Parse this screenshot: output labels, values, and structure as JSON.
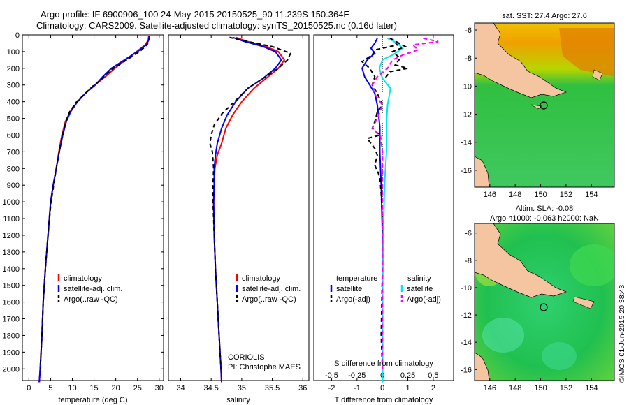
{
  "title_line1": "Argo profile: IF 6900906_100 24-May-2015 20150525_90 11.239S 150.364E",
  "title_line2": "Climatology: CARS2009. Satellite-adjusted climatology: synTS_20150525.nc (0.16d later)",
  "colors": {
    "climatology": "#ff0000",
    "satellite": "#0000ff",
    "argo": "#000000",
    "sal_satellite": "#00e5ee",
    "sal_argo": "#ff00ff"
  },
  "chart_data": [
    {
      "type": "line",
      "id": "temperature",
      "xlabel": "temperature (deg C)",
      "xlim": [
        -1.5,
        31
      ],
      "ylim": [
        2070,
        0
      ],
      "xticks": [
        0,
        5,
        10,
        15,
        20,
        25,
        30
      ],
      "yticks": [
        0,
        100,
        200,
        300,
        400,
        500,
        600,
        700,
        800,
        900,
        1000,
        1100,
        1200,
        1300,
        1400,
        1500,
        1600,
        1700,
        1800,
        1900,
        2000
      ],
      "legend": [
        "climatology",
        "satellite-adj. clim.",
        "Argo(..raw -QC)"
      ],
      "series": [
        {
          "name": "climatology",
          "color": "red",
          "dash": "",
          "points": [
            [
              27.6,
              5
            ],
            [
              27.5,
              30
            ],
            [
              26.8,
              60
            ],
            [
              24.8,
              100
            ],
            [
              22.2,
              150
            ],
            [
              19.8,
              200
            ],
            [
              17.6,
              250
            ],
            [
              15.2,
              300
            ],
            [
              13,
              350
            ],
            [
              11.2,
              400
            ],
            [
              9.5,
              460
            ],
            [
              8.4,
              520
            ],
            [
              7.6,
              600
            ],
            [
              6.9,
              700
            ],
            [
              6.3,
              800
            ],
            [
              5.6,
              900
            ],
            [
              5,
              1000
            ],
            [
              4.4,
              1200
            ],
            [
              3.8,
              1400
            ],
            [
              3.3,
              1600
            ],
            [
              3,
              1800
            ],
            [
              2.6,
              2000
            ],
            [
              2.4,
              2080
            ]
          ]
        },
        {
          "name": "satellite",
          "color": "blue",
          "dash": "",
          "points": [
            [
              27.7,
              5
            ],
            [
              27.6,
              30
            ],
            [
              27,
              60
            ],
            [
              25,
              100
            ],
            [
              22,
              150
            ],
            [
              19,
              200
            ],
            [
              17,
              250
            ],
            [
              15.3,
              300
            ],
            [
              13,
              350
            ],
            [
              11.2,
              400
            ],
            [
              9.6,
              460
            ],
            [
              8.6,
              520
            ],
            [
              7.8,
              600
            ],
            [
              7,
              700
            ],
            [
              6.3,
              800
            ],
            [
              5.6,
              900
            ],
            [
              5,
              1000
            ],
            [
              4.4,
              1200
            ],
            [
              3.8,
              1400
            ],
            [
              3.3,
              1600
            ],
            [
              3,
              1800
            ],
            [
              2.6,
              2000
            ],
            [
              2.4,
              2080
            ]
          ]
        },
        {
          "name": "argo",
          "color": "black",
          "dash": "6,4",
          "points": [
            [
              27.8,
              5
            ],
            [
              27.7,
              30
            ],
            [
              27.2,
              60
            ],
            [
              25.5,
              100
            ],
            [
              22.5,
              150
            ],
            [
              19.5,
              200
            ],
            [
              18,
              230
            ],
            [
              16.5,
              270
            ],
            [
              15,
              300
            ],
            [
              13,
              350
            ],
            [
              11,
              400
            ],
            [
              9.4,
              460
            ],
            [
              8.5,
              520
            ],
            [
              7.7,
              600
            ],
            [
              7,
              700
            ],
            [
              6.3,
              800
            ],
            [
              5.7,
              900
            ],
            [
              5.1,
              1000
            ],
            [
              4.4,
              1200
            ],
            [
              3.8,
              1400
            ],
            [
              3.3,
              1600
            ],
            [
              3,
              1800
            ],
            [
              2.6,
              2000
            ]
          ]
        }
      ]
    },
    {
      "type": "line",
      "id": "salinity",
      "xlabel": "salinity",
      "xlim": [
        33.8,
        36.1
      ],
      "ylim": [
        2070,
        0
      ],
      "xticks": [
        34,
        34.5,
        35,
        35.5,
        36
      ],
      "xtick_labels": [
        "34",
        "34.5",
        "35",
        "35.5",
        "36"
      ],
      "legend": [
        "climatology",
        "satellite-adj. clim.",
        "Argo(..raw -QC)"
      ],
      "annotation": [
        "CORIOLIS",
        "PI: Christophe MAES"
      ],
      "series": [
        {
          "name": "climatology",
          "color": "red",
          "dash": "",
          "points": [
            [
              34.9,
              15
            ],
            [
              35.1,
              40
            ],
            [
              35.4,
              70
            ],
            [
              35.6,
              100
            ],
            [
              35.7,
              150
            ],
            [
              35.6,
              200
            ],
            [
              35.4,
              260
            ],
            [
              35.2,
              320
            ],
            [
              35,
              400
            ],
            [
              34.85,
              480
            ],
            [
              34.74,
              560
            ],
            [
              34.67,
              650
            ],
            [
              34.6,
              720
            ],
            [
              34.56,
              800
            ],
            [
              34.55,
              900
            ],
            [
              34.54,
              1000
            ],
            [
              34.55,
              1200
            ],
            [
              34.57,
              1400
            ],
            [
              34.6,
              1600
            ],
            [
              34.63,
              1800
            ],
            [
              34.66,
              2000
            ],
            [
              34.67,
              2080
            ]
          ]
        },
        {
          "name": "satellite",
          "color": "blue",
          "dash": "",
          "points": [
            [
              34.85,
              15
            ],
            [
              35.05,
              40
            ],
            [
              35.35,
              70
            ],
            [
              35.55,
              100
            ],
            [
              35.65,
              150
            ],
            [
              35.55,
              200
            ],
            [
              35.35,
              260
            ],
            [
              35.1,
              320
            ],
            [
              34.9,
              400
            ],
            [
              34.76,
              480
            ],
            [
              34.67,
              560
            ],
            [
              34.6,
              650
            ],
            [
              34.57,
              720
            ],
            [
              34.55,
              800
            ],
            [
              34.55,
              900
            ],
            [
              34.54,
              1000
            ],
            [
              34.55,
              1200
            ],
            [
              34.57,
              1400
            ],
            [
              34.6,
              1600
            ],
            [
              34.63,
              1800
            ],
            [
              34.66,
              2000
            ],
            [
              34.67,
              2080
            ]
          ]
        },
        {
          "name": "argo",
          "color": "black",
          "dash": "6,4",
          "points": [
            [
              34.8,
              15
            ],
            [
              35.1,
              40
            ],
            [
              35.5,
              70
            ],
            [
              35.8,
              110
            ],
            [
              35.75,
              150
            ],
            [
              35.6,
              200
            ],
            [
              35.35,
              260
            ],
            [
              35.1,
              320
            ],
            [
              34.88,
              400
            ],
            [
              34.68,
              470
            ],
            [
              34.55,
              540
            ],
            [
              34.5,
              600
            ],
            [
              34.48,
              650
            ],
            [
              34.52,
              700
            ],
            [
              34.54,
              800
            ],
            [
              34.53,
              900
            ],
            [
              34.53,
              1000
            ],
            [
              34.55,
              1200
            ],
            [
              34.57,
              1400
            ],
            [
              34.6,
              1600
            ],
            [
              34.63,
              1800
            ],
            [
              34.66,
              2000
            ]
          ]
        }
      ]
    },
    {
      "type": "line",
      "id": "differences",
      "xlabel": "T difference from climatology",
      "xlabel_top": "S difference from climatology",
      "xlim": [
        -2.7,
        2.8
      ],
      "ylim": [
        2070,
        0
      ],
      "xticks": [
        -2,
        -1,
        0,
        1,
        2
      ],
      "xtick_labels": [
        "-2",
        "-1",
        "0",
        "1",
        "2"
      ],
      "xticks_s": [
        -0.5,
        -0.25,
        0,
        0.25,
        0.5
      ],
      "xtick_labels_s": [
        "-0.5",
        "-0.25",
        "0",
        "0.25",
        "0.5"
      ],
      "legend_temperature_title": "temperature",
      "legend_salinity_title": "salinity",
      "legend_temperature": [
        "satellite",
        "Argo(-adj)"
      ],
      "legend_salinity": [
        "satellite",
        "Argo(-adj)"
      ],
      "series": [
        {
          "name": "T satellite",
          "color": "blue",
          "dash": "",
          "points": [
            [
              -0.2,
              20
            ],
            [
              -0.3,
              50
            ],
            [
              -0.45,
              80
            ],
            [
              -0.3,
              110
            ],
            [
              -0.6,
              150
            ],
            [
              -0.8,
              200
            ],
            [
              -0.7,
              250
            ],
            [
              -0.5,
              300
            ],
            [
              -0.3,
              350
            ],
            [
              -0.2,
              420
            ],
            [
              -0.15,
              480
            ],
            [
              -0.1,
              550
            ],
            [
              -0.1,
              700
            ],
            [
              -0.05,
              900
            ],
            [
              0,
              1200
            ],
            [
              0,
              1600
            ],
            [
              0,
              2080
            ]
          ]
        },
        {
          "name": "T argo",
          "color": "black",
          "dash": "6,4",
          "points": [
            [
              0.3,
              20
            ],
            [
              0.6,
              60
            ],
            [
              -0.3,
              90
            ],
            [
              -0.4,
              120
            ],
            [
              -0.8,
              160
            ],
            [
              -0.5,
              200
            ],
            [
              -0.3,
              250
            ],
            [
              -0.4,
              300
            ],
            [
              -0.2,
              350
            ],
            [
              0,
              420
            ],
            [
              -0.2,
              460
            ],
            [
              -0.3,
              520
            ],
            [
              -0.4,
              560
            ],
            [
              -0.1,
              600
            ],
            [
              -0.6,
              620
            ],
            [
              -0.3,
              680
            ],
            [
              -0.2,
              720
            ],
            [
              -0.3,
              780
            ],
            [
              -0.1,
              850
            ],
            [
              -0.05,
              950
            ],
            [
              0,
              1100
            ],
            [
              0,
              1400
            ],
            [
              -0.05,
              1800
            ],
            [
              0,
              2000
            ]
          ]
        },
        {
          "name": "S satellite",
          "color": "cyan",
          "dash": "",
          "points": [
            [
              0.05,
              20
            ],
            [
              0.15,
              50
            ],
            [
              0.2,
              80
            ],
            [
              0.1,
              120
            ],
            [
              0,
              150
            ],
            [
              -0.03,
              200
            ],
            [
              0,
              260
            ],
            [
              0.08,
              320
            ],
            [
              0.05,
              420
            ],
            [
              0.04,
              520
            ],
            [
              0.04,
              700
            ],
            [
              0.02,
              900
            ],
            [
              0.01,
              1200
            ],
            [
              0,
              1600
            ],
            [
              0,
              2080
            ]
          ]
        },
        {
          "name": "S argo",
          "color": "magenta",
          "dash": "6,4",
          "points": [
            [
              0.4,
              20
            ],
            [
              0.55,
              40
            ],
            [
              0.3,
              60
            ],
            [
              0.35,
              90
            ],
            [
              0.2,
              120
            ],
            [
              0.1,
              150
            ],
            [
              0.05,
              200
            ],
            [
              -0.05,
              250
            ],
            [
              -0.1,
              300
            ],
            [
              -0.08,
              350
            ],
            [
              0,
              420
            ],
            [
              -0.05,
              500
            ],
            [
              -0.1,
              560
            ],
            [
              -0.02,
              600
            ],
            [
              0,
              700
            ],
            [
              0,
              900
            ],
            [
              0,
              1200
            ],
            [
              0,
              1600
            ],
            [
              0,
              2000
            ]
          ]
        },
        {
          "name": "T argo deep",
          "color": "black",
          "dash": "6,4",
          "points": [
            [
              0.3,
              20
            ],
            [
              0.9,
              70
            ],
            [
              0.4,
              100
            ],
            [
              0.7,
              140
            ],
            [
              0.5,
              180
            ],
            [
              1.0,
              200
            ],
            [
              0.3,
              220
            ],
            [
              0.1,
              260
            ]
          ]
        }
      ]
    }
  ],
  "maps": {
    "sst_title": "sat. SST: 27.4 Argo: 27.6",
    "sla_title1": "Altim. SLA: -0.08",
    "sla_title2": "Argo h1000: -0.063 h2000: NaN",
    "lat_ticks": [
      "-6",
      "-8",
      "-10",
      "-12",
      "-14",
      "-16"
    ],
    "lon_ticks": [
      "146",
      "148",
      "150",
      "152",
      "154"
    ],
    "credit": "©IMOS 01-Jun-2015 20:38:43"
  }
}
